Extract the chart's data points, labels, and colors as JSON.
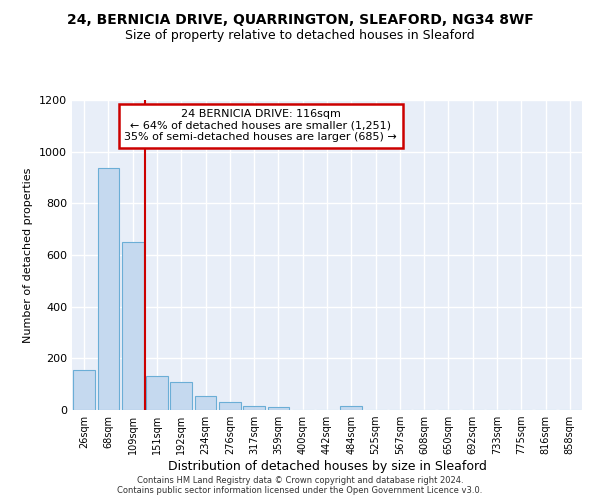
{
  "title1": "24, BERNICIA DRIVE, QUARRINGTON, SLEAFORD, NG34 8WF",
  "title2": "Size of property relative to detached houses in Sleaford",
  "xlabel": "Distribution of detached houses by size in Sleaford",
  "ylabel": "Number of detached properties",
  "footnote1": "Contains HM Land Registry data © Crown copyright and database right 2024.",
  "footnote2": "Contains public sector information licensed under the Open Government Licence v3.0.",
  "annotation_line1": "24 BERNICIA DRIVE: 116sqm",
  "annotation_line2": "← 64% of detached houses are smaller (1,251)",
  "annotation_line3": "35% of semi-detached houses are larger (685) →",
  "bar_labels": [
    "26sqm",
    "68sqm",
    "109sqm",
    "151sqm",
    "192sqm",
    "234sqm",
    "276sqm",
    "317sqm",
    "359sqm",
    "400sqm",
    "442sqm",
    "484sqm",
    "525sqm",
    "567sqm",
    "608sqm",
    "650sqm",
    "692sqm",
    "733sqm",
    "775sqm",
    "816sqm",
    "858sqm"
  ],
  "bar_values": [
    155,
    935,
    650,
    130,
    110,
    55,
    30,
    15,
    10,
    0,
    0,
    15,
    0,
    0,
    0,
    0,
    0,
    0,
    0,
    0,
    0
  ],
  "bar_color": "#c5d9ef",
  "bar_edge_color": "#6baed6",
  "vline_color": "#cc0000",
  "vline_x": 2.5,
  "annotation_box_color": "#cc0000",
  "ylim": [
    0,
    1200
  ],
  "yticks": [
    0,
    200,
    400,
    600,
    800,
    1000,
    1200
  ],
  "background_color": "#e8eef8",
  "grid_color": "#ffffff",
  "title1_fontsize": 10,
  "title2_fontsize": 9,
  "ylabel_fontsize": 8,
  "xlabel_fontsize": 9,
  "tick_fontsize": 8,
  "annotation_fontsize": 8,
  "footer_fontsize": 6
}
